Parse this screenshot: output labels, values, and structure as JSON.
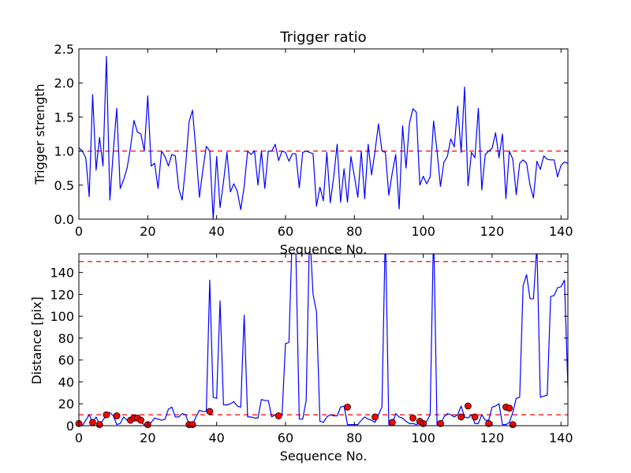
{
  "chart_data": [
    {
      "type": "line",
      "title": "Trigger ratio",
      "xlabel": "Sequence No.",
      "ylabel": "Trigger strength",
      "xlim": [
        0,
        142
      ],
      "ylim": [
        0,
        2.5
      ],
      "xticks": [
        0,
        20,
        40,
        60,
        80,
        100,
        120,
        140
      ],
      "yticks": [
        0.0,
        0.5,
        1.0,
        1.5,
        2.0,
        2.5
      ],
      "ytick_labels": [
        "0.0",
        "0.5",
        "1.0",
        "1.5",
        "2.0",
        "2.5"
      ],
      "grid": false,
      "threshold_lines": [
        1.0
      ],
      "series": [
        {
          "name": "Trigger strength",
          "color": "#0000ff",
          "x": [
            0,
            1,
            2,
            3,
            4,
            5,
            6,
            7,
            8,
            9,
            10,
            11,
            12,
            13,
            14,
            15,
            16,
            17,
            18,
            19,
            20,
            21,
            22,
            23,
            24,
            25,
            26,
            27,
            28,
            29,
            30,
            31,
            32,
            33,
            34,
            35,
            36,
            37,
            38,
            39,
            40,
            41,
            42,
            43,
            44,
            45,
            46,
            47,
            48,
            49,
            50,
            51,
            52,
            53,
            54,
            55,
            56,
            57,
            58,
            59,
            60,
            61,
            62,
            63,
            64,
            65,
            66,
            67,
            68,
            69,
            70,
            71,
            72,
            73,
            74,
            75,
            76,
            77,
            78,
            79,
            80,
            81,
            82,
            83,
            84,
            85,
            86,
            87,
            88,
            89,
            90,
            91,
            92,
            93,
            94,
            95,
            96,
            97,
            98,
            99,
            100,
            101,
            102,
            103,
            104,
            105,
            106,
            107,
            108,
            109,
            110,
            111,
            112,
            113,
            114,
            115,
            116,
            117,
            118,
            119,
            120,
            121,
            122,
            123,
            124,
            125,
            126,
            127,
            128,
            129,
            130,
            131,
            132,
            133,
            134,
            135,
            136,
            137,
            138,
            139,
            140,
            141,
            142
          ],
          "y": [
            1.05,
            1.0,
            0.9,
            0.33,
            1.83,
            0.72,
            1.2,
            0.78,
            2.39,
            0.28,
            1.0,
            1.63,
            0.45,
            0.58,
            0.75,
            1.05,
            1.45,
            1.28,
            1.25,
            1.0,
            1.81,
            0.78,
            0.82,
            0.45,
            1.0,
            0.92,
            0.78,
            0.95,
            0.93,
            0.45,
            0.28,
            0.78,
            1.43,
            1.6,
            1.0,
            0.32,
            0.72,
            1.07,
            1.0,
            0.0,
            0.92,
            0.17,
            0.55,
            0.98,
            0.4,
            0.52,
            0.41,
            0.14,
            0.48,
            1.0,
            0.95,
            1.0,
            0.5,
            1.0,
            0.45,
            1.0,
            1.0,
            1.1,
            0.86,
            1.0,
            0.98,
            0.85,
            0.96,
            0.96,
            0.46,
            0.98,
            1.0,
            0.98,
            0.96,
            0.19,
            0.47,
            0.27,
            0.98,
            0.24,
            0.62,
            1.1,
            0.25,
            0.74,
            0.25,
            0.92,
            0.63,
            0.32,
            1.0,
            0.3,
            1.1,
            0.65,
            1.0,
            1.4,
            1.0,
            0.98,
            0.35,
            0.68,
            0.95,
            0.15,
            1.37,
            0.75,
            1.41,
            1.62,
            1.57,
            0.5,
            0.63,
            0.52,
            0.62,
            1.44,
            1.0,
            0.48,
            0.84,
            0.92,
            1.18,
            1.06,
            1.66,
            0.98,
            1.94,
            0.49,
            0.98,
            0.9,
            1.63,
            0.43,
            0.95,
            1.0,
            1.04,
            1.27,
            0.9,
            1.25,
            0.3,
            1.0,
            0.88,
            0.36,
            0.82,
            0.87,
            0.82,
            0.5,
            0.31,
            0.85,
            0.73,
            0.93,
            0.88,
            0.87,
            0.87,
            0.62,
            0.79,
            0.84,
            0.82
          ]
        }
      ]
    },
    {
      "type": "line",
      "title": "",
      "xlabel": "Sequence No.",
      "ylabel": "Distance [pix]",
      "xlim": [
        0,
        142
      ],
      "ylim": [
        0,
        157
      ],
      "xticks": [
        0,
        20,
        40,
        60,
        80,
        100,
        120,
        140
      ],
      "yticks": [
        0,
        20,
        40,
        60,
        80,
        100,
        120,
        140
      ],
      "grid": false,
      "threshold_lines": [
        10,
        150
      ],
      "series": [
        {
          "name": "Distance",
          "color": "#0000ff",
          "x": [
            0,
            1,
            2,
            3,
            4,
            5,
            6,
            7,
            8,
            9,
            10,
            11,
            12,
            13,
            14,
            15,
            16,
            17,
            18,
            19,
            20,
            21,
            22,
            23,
            24,
            25,
            26,
            27,
            28,
            29,
            30,
            31,
            32,
            33,
            34,
            35,
            36,
            37,
            38,
            39,
            40,
            41,
            42,
            43,
            44,
            45,
            46,
            47,
            48,
            49,
            50,
            51,
            52,
            53,
            54,
            55,
            56,
            57,
            58,
            59,
            60,
            61,
            62,
            63,
            64,
            65,
            66,
            67,
            68,
            69,
            70,
            71,
            72,
            73,
            74,
            75,
            76,
            77,
            78,
            79,
            80,
            81,
            82,
            83,
            84,
            85,
            86,
            87,
            88,
            89,
            90,
            91,
            92,
            93,
            94,
            95,
            96,
            97,
            98,
            99,
            100,
            101,
            102,
            103,
            104,
            105,
            106,
            107,
            108,
            109,
            110,
            111,
            112,
            113,
            114,
            115,
            116,
            117,
            118,
            119,
            120,
            121,
            122,
            123,
            124,
            125,
            126,
            127,
            128,
            129,
            130,
            131,
            132,
            133,
            134,
            135,
            136,
            137,
            138,
            139,
            140,
            141,
            142
          ],
          "y": [
            2,
            0,
            5,
            10,
            3,
            8,
            1,
            5,
            10,
            12,
            9,
            1,
            2,
            8,
            5,
            7,
            7,
            5,
            3,
            1,
            1,
            3,
            7,
            6,
            5,
            6,
            15,
            17,
            8,
            8,
            11,
            10,
            1,
            1,
            8,
            14,
            13,
            13,
            133,
            26,
            25,
            114,
            19,
            19,
            20,
            22,
            18,
            17,
            101,
            8,
            8,
            7,
            7,
            24,
            23,
            23,
            8,
            10,
            9,
            10,
            75,
            76,
            180,
            160,
            6,
            6,
            23,
            180,
            120,
            104,
            4,
            3,
            8,
            10,
            9,
            9,
            17,
            18,
            1,
            1,
            1,
            1,
            5,
            8,
            6,
            5,
            3,
            10,
            17,
            180,
            1,
            1,
            11,
            8,
            7,
            4,
            2,
            2,
            1,
            3,
            1,
            4,
            10,
            180,
            1,
            1,
            8,
            11,
            10,
            8,
            10,
            18,
            8,
            7,
            10,
            2,
            2,
            10,
            5,
            5,
            17,
            18,
            20,
            1,
            1,
            3,
            12,
            25,
            26,
            128,
            138,
            116,
            116,
            165,
            26,
            27,
            28,
            118,
            119,
            126,
            127,
            133,
            35
          ],
          "markers": {
            "color": "#ff0000",
            "x": [
              0,
              4,
              6,
              8,
              11,
              15,
              16,
              17,
              18,
              20,
              32,
              33,
              38,
              58,
              78,
              86,
              91,
              97,
              99,
              100,
              105,
              111,
              113,
              115,
              119,
              124,
              125,
              126
            ],
            "y": [
              2,
              3,
              1,
              10,
              9,
              5,
              7,
              7,
              5,
              1,
              1,
              1,
              13,
              9,
              17,
              8,
              3,
              7,
              4,
              2,
              2,
              8,
              18,
              8,
              2,
              17,
              16,
              1
            ]
          }
        }
      ]
    }
  ]
}
